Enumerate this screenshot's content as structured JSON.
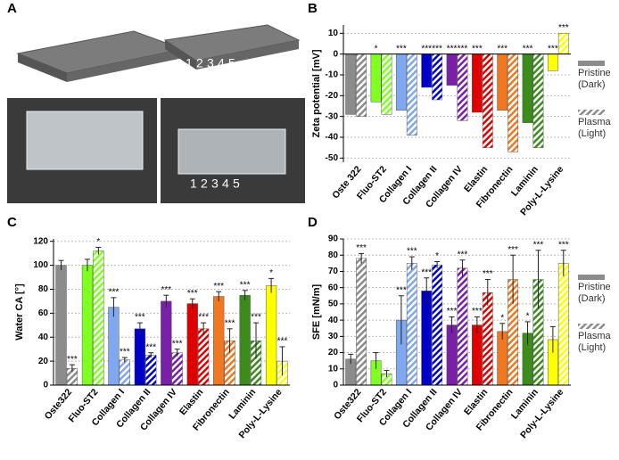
{
  "panel_a": {
    "label": "A",
    "numbers_top": [
      "1",
      "2",
      "3",
      "4",
      "5"
    ],
    "numbers_bottom": [
      "1",
      "2",
      "3",
      "4",
      "5"
    ]
  },
  "chart_data": [
    {
      "type": "bar",
      "panel": "B",
      "y_label": "Zeta potential [mV]",
      "categories": [
        "Oste 322",
        "Fluo-ST2",
        "Collagen I",
        "Collagen II",
        "Collagen IV",
        "Elastin",
        "Fibronectin",
        "Laminin",
        "Poly-L-Lysine"
      ],
      "colors": [
        "#8c8c8c",
        "#80ff20",
        "#80a8f0",
        "#0000c8",
        "#7a20a8",
        "#e00000",
        "#f07820",
        "#3c8c1c",
        "#ffff00"
      ],
      "series": [
        {
          "name": "Pristine (Dark)",
          "values": [
            -29,
            -23,
            -27,
            -16,
            -15,
            -28,
            -27,
            -33,
            -8
          ],
          "annotations": [
            null,
            "*",
            "***",
            "***",
            "***",
            "***",
            "***",
            "***",
            "***"
          ]
        },
        {
          "name": "Plasma (Light)",
          "values": [
            -30,
            -29,
            -39,
            -22,
            -32,
            -45,
            -47,
            -45,
            10
          ],
          "annotations": [
            null,
            null,
            null,
            "***",
            "***",
            null,
            null,
            null,
            "***"
          ]
        }
      ],
      "ylim": [
        -52,
        14
      ],
      "yticks": [
        -50,
        -40,
        -30,
        -20,
        -10,
        0,
        10
      ],
      "grid": true,
      "legend": true
    },
    {
      "type": "bar",
      "panel": "C",
      "y_label": "Water CA [°]",
      "categories": [
        "Oste322",
        "Fluo-ST2",
        "Collagen I",
        "Collagen II",
        "Collagen IV",
        "Elastin",
        "Fibronectin",
        "Laminin",
        "Poly-L-Lysine"
      ],
      "colors": [
        "#8c8c8c",
        "#80ff20",
        "#80a8f0",
        "#0000c8",
        "#7a20a8",
        "#e00000",
        "#f07820",
        "#3c8c1c",
        "#ffff00"
      ],
      "series": [
        {
          "values": [
            100,
            100,
            65,
            47,
            70,
            68,
            74,
            75,
            83
          ],
          "errors": [
            4,
            5,
            8,
            5,
            5,
            4,
            4,
            4,
            6
          ],
          "annotations": [
            null,
            null,
            "***",
            "***",
            "***",
            "***",
            "***",
            "***",
            "*"
          ]
        },
        {
          "values": [
            14,
            112,
            21,
            25,
            27,
            47,
            37,
            37,
            20
          ],
          "errors": [
            3,
            3,
            2,
            2,
            3,
            5,
            10,
            15,
            12
          ],
          "annotations": [
            "***",
            "*",
            "***",
            "***",
            "***",
            "***",
            "***",
            "***",
            "***"
          ]
        }
      ],
      "ylim": [
        0,
        122
      ],
      "yticks": [
        0,
        20,
        40,
        60,
        80,
        100,
        120
      ],
      "grid": true,
      "legend": false
    },
    {
      "type": "bar",
      "panel": "D",
      "y_label": "SFE [mN/m]",
      "categories": [
        "Oste322",
        "Fluo-ST2",
        "Collagen I",
        "Collagen II",
        "Collagen IV",
        "Elastin",
        "Fibronectin",
        "Laminin",
        "Poly-L-Lysine"
      ],
      "colors": [
        "#8c8c8c",
        "#80ff20",
        "#80a8f0",
        "#0000c8",
        "#7a20a8",
        "#e00000",
        "#f07820",
        "#3c8c1c",
        "#ffff00"
      ],
      "series": [
        {
          "name": "Pristine (Dark)",
          "values": [
            16,
            15,
            40,
            58,
            37,
            37,
            33,
            32,
            28
          ],
          "errors": [
            3,
            5,
            15,
            8,
            5,
            5,
            5,
            7,
            8
          ],
          "annotations": [
            null,
            null,
            "***",
            "***",
            "***",
            "***",
            "*",
            "*",
            null
          ]
        },
        {
          "name": "Plasma (Light)",
          "values": [
            78,
            7,
            75,
            74,
            72,
            57,
            65,
            65,
            75
          ],
          "errors": [
            3,
            2,
            4,
            2,
            5,
            8,
            15,
            18,
            8
          ],
          "annotations": [
            "***",
            null,
            "***",
            "*",
            "***",
            "***",
            "***",
            "***",
            "***"
          ]
        }
      ],
      "ylim": [
        0,
        90
      ],
      "yticks": [
        0,
        10,
        20,
        30,
        40,
        50,
        60,
        70,
        80,
        90
      ],
      "grid": true,
      "legend": true
    }
  ]
}
